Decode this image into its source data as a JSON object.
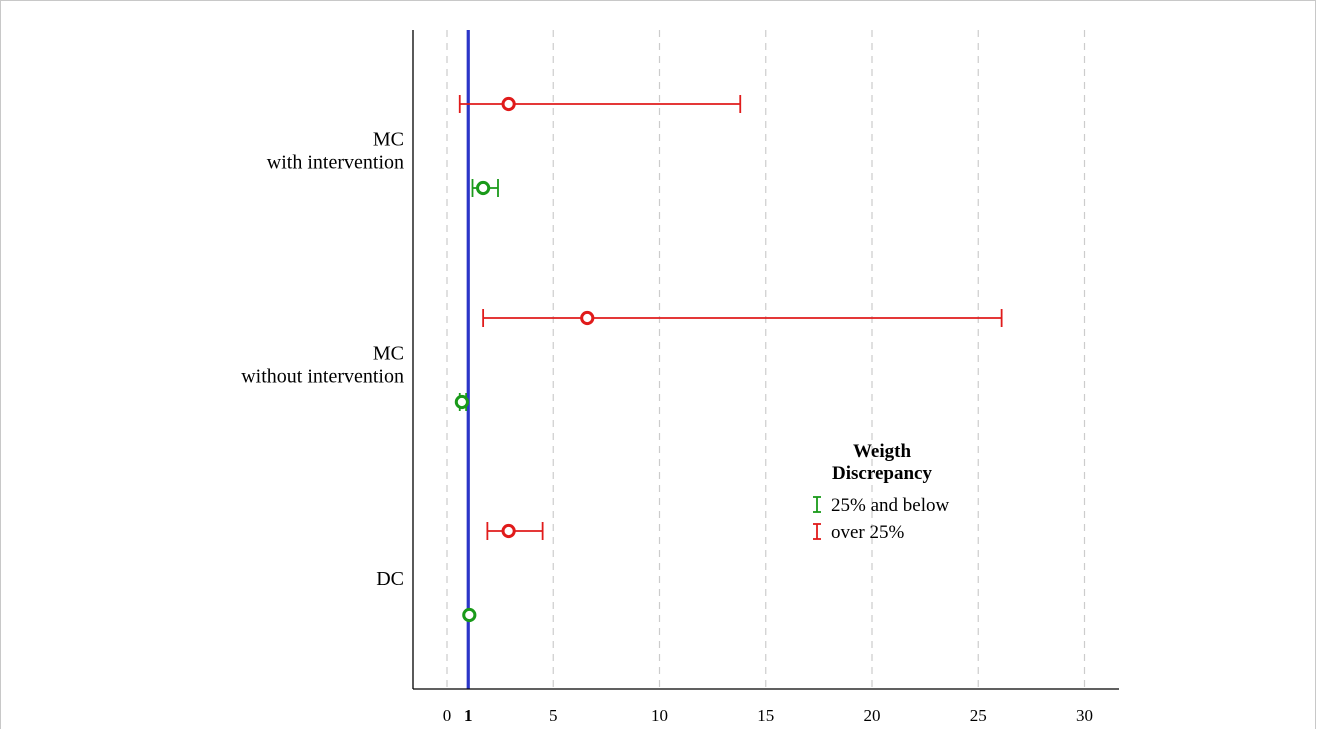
{
  "chart_data": {
    "type": "scatter",
    "subtype": "forest-plot",
    "title": "",
    "xlabel": "",
    "ylabel": "",
    "xlim": [
      -1,
      32
    ],
    "x_ticks": [
      0,
      1,
      5,
      10,
      15,
      20,
      25,
      30
    ],
    "x_tick_labels": [
      "0",
      "1",
      "5",
      "10",
      "15",
      "20",
      "25",
      "30"
    ],
    "bold_tick": 1,
    "reference_line": 1,
    "reference_line_color": "#2b35c8",
    "grid": "vertical dashed",
    "categories": [
      {
        "lines": [
          "MC",
          "with intervention"
        ],
        "row": 0
      },
      {
        "lines": [
          "MC",
          "without intervention"
        ],
        "row": 1
      },
      {
        "lines": [
          "DC"
        ],
        "row": 2
      }
    ],
    "series": [
      {
        "name": "25% and below",
        "color": "#1a9a1a",
        "points": [
          {
            "category": 0,
            "estimate": 1.7,
            "lower": 1.2,
            "upper": 2.4
          },
          {
            "category": 1,
            "estimate": 0.7,
            "lower": 0.6,
            "upper": 0.9
          },
          {
            "category": 2,
            "estimate": 1.05,
            "lower": 1.05,
            "upper": 1.05
          }
        ]
      },
      {
        "name": "over 25%",
        "color": "#e01b1b",
        "points": [
          {
            "category": 0,
            "estimate": 2.9,
            "lower": 0.6,
            "upper": 13.8
          },
          {
            "category": 1,
            "estimate": 6.6,
            "lower": 1.7,
            "upper": 26.1
          },
          {
            "category": 2,
            "estimate": 2.9,
            "lower": 1.9,
            "upper": 4.5
          }
        ]
      }
    ],
    "legend": {
      "title_lines": [
        "Weigth",
        "Discrepancy"
      ],
      "placement": "right-middle"
    }
  }
}
